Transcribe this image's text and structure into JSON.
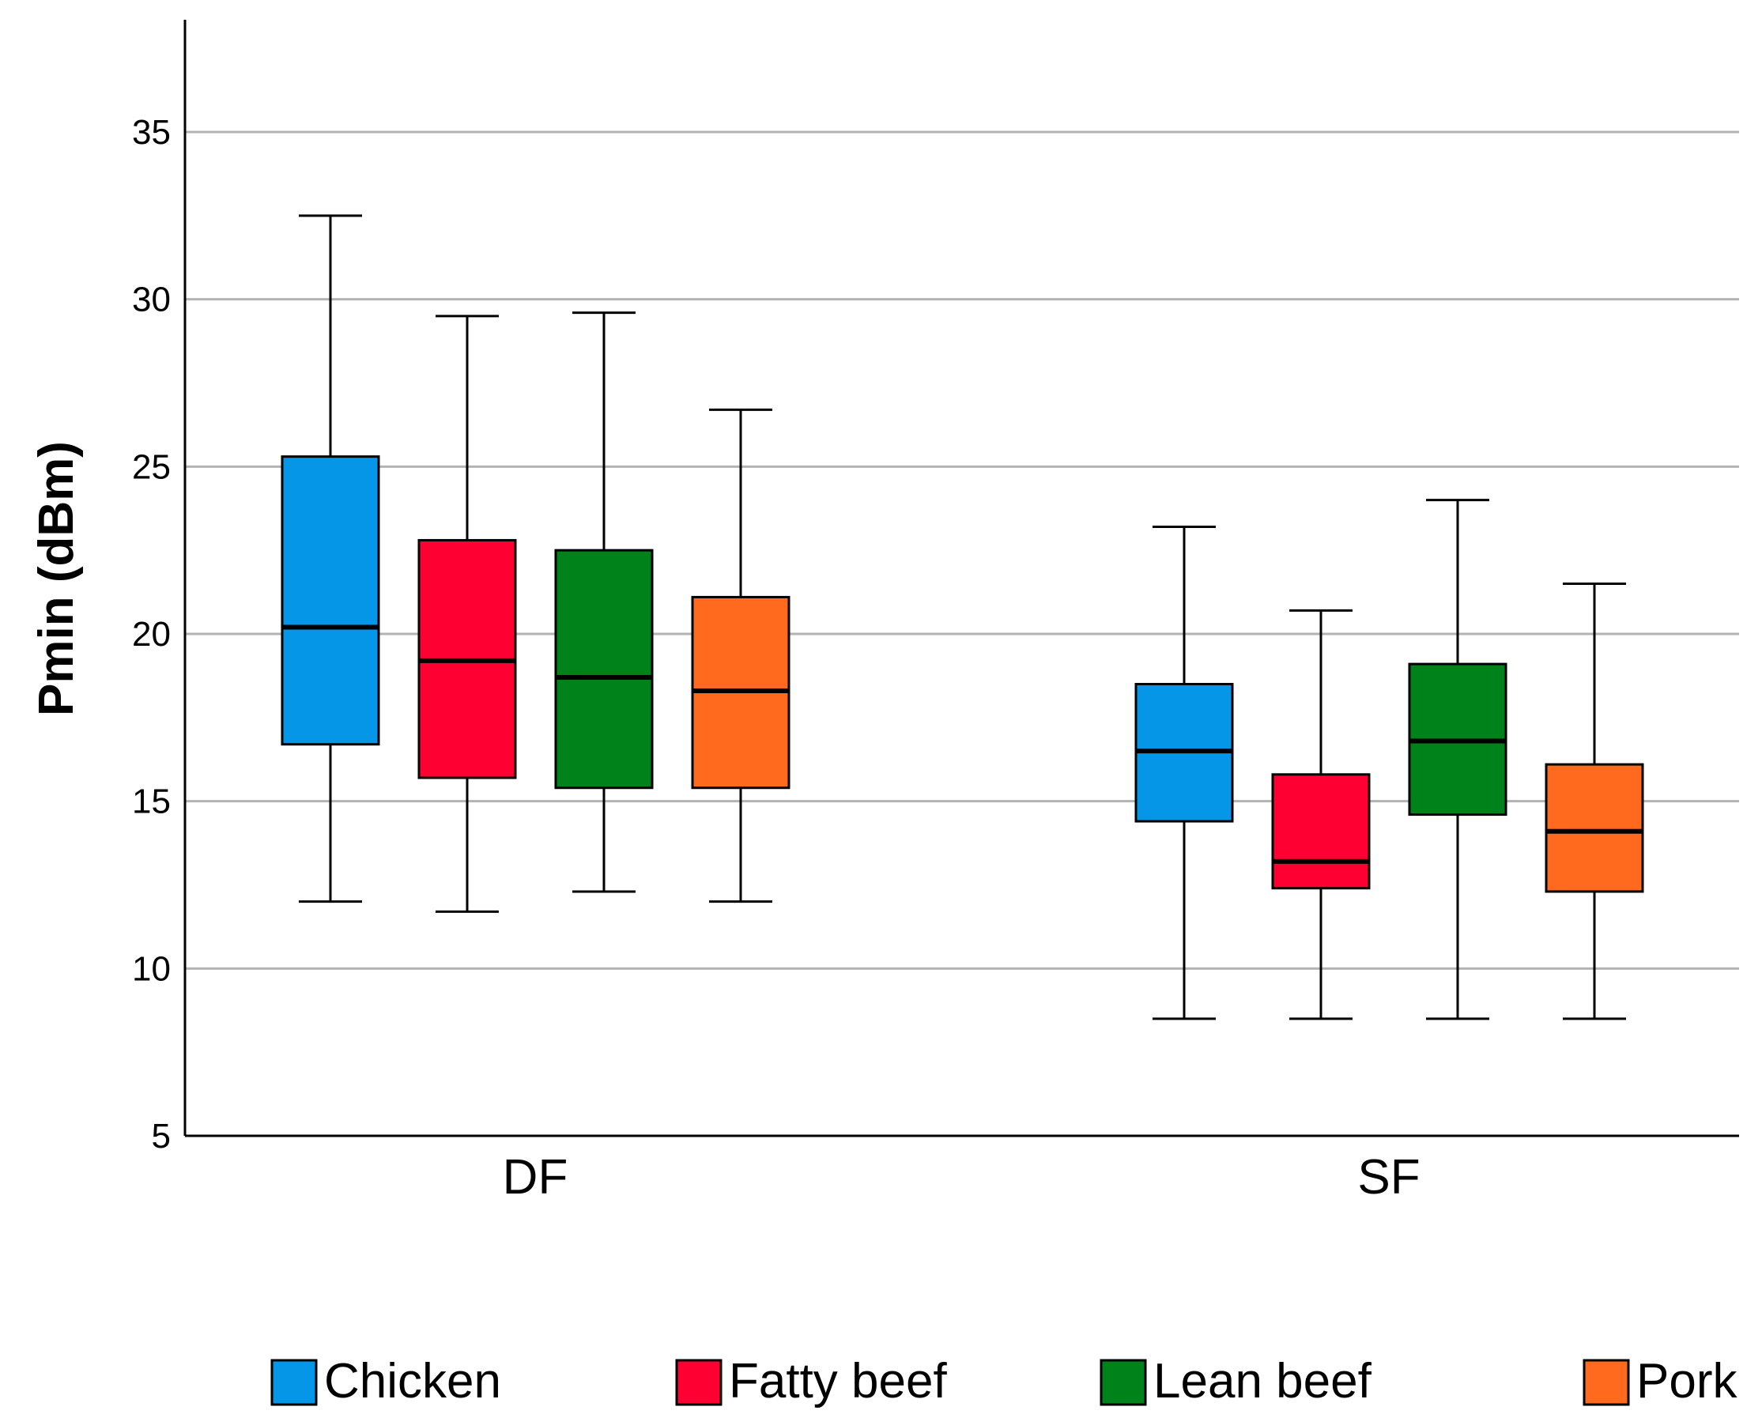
{
  "chart_data": {
    "type": "boxplot",
    "title": "",
    "xlabel": "",
    "ylabel": "Pmin (dBm)",
    "ylim": [
      5,
      38
    ],
    "yticks": [
      5,
      10,
      15,
      20,
      25,
      30,
      35
    ],
    "grid": true,
    "legend_position": "bottom",
    "categories": [
      "DF",
      "SF"
    ],
    "series": [
      {
        "name": "Chicken",
        "color": "#0596e8",
        "boxes": [
          {
            "category": "DF",
            "min": 12.0,
            "q1": 16.7,
            "median": 20.2,
            "q3": 25.3,
            "max": 32.5
          },
          {
            "category": "SF",
            "min": 8.5,
            "q1": 14.4,
            "median": 16.5,
            "q3": 18.5,
            "max": 23.2
          }
        ]
      },
      {
        "name": "Fatty beef",
        "color": "#ff0033",
        "boxes": [
          {
            "category": "DF",
            "min": 11.7,
            "q1": 15.7,
            "median": 19.2,
            "q3": 22.8,
            "max": 29.5
          },
          {
            "category": "SF",
            "min": 8.5,
            "q1": 12.4,
            "median": 13.2,
            "q3": 15.8,
            "max": 20.7
          }
        ]
      },
      {
        "name": "Lean beef",
        "color": "#00821a",
        "boxes": [
          {
            "category": "DF",
            "min": 12.3,
            "q1": 15.4,
            "median": 18.7,
            "q3": 22.5,
            "max": 29.6
          },
          {
            "category": "SF",
            "min": 8.5,
            "q1": 14.6,
            "median": 16.8,
            "q3": 19.1,
            "max": 24.0
          }
        ]
      },
      {
        "name": "Pork",
        "color": "#ff6a1f",
        "boxes": [
          {
            "category": "DF",
            "min": 12.0,
            "q1": 15.4,
            "median": 18.3,
            "q3": 21.1,
            "max": 26.7
          },
          {
            "category": "SF",
            "min": 8.5,
            "q1": 12.3,
            "median": 14.1,
            "q3": 16.1,
            "max": 21.5
          }
        ]
      }
    ]
  }
}
